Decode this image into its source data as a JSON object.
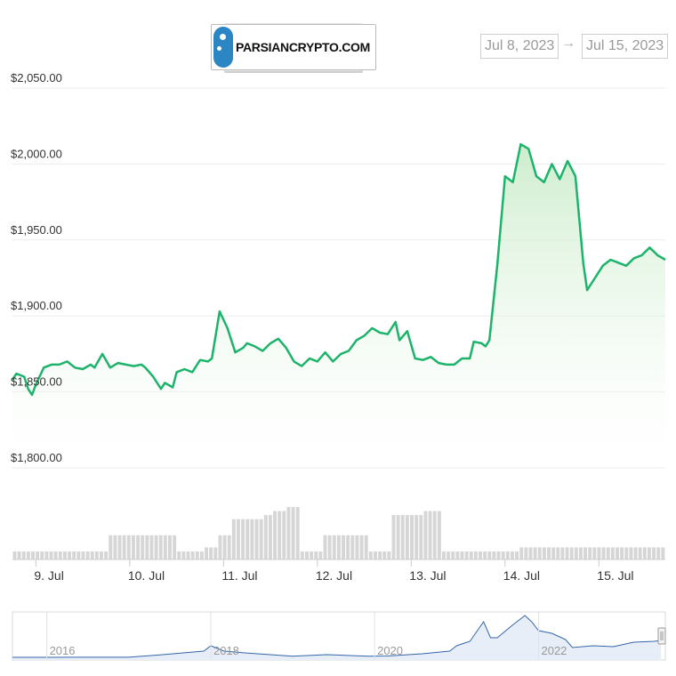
{
  "logo": {
    "text": "PARSIANCRYPTO.COM"
  },
  "range_selector": {
    "from": "Jul 8, 2023",
    "arrow": "→",
    "to": "Jul 15, 2023"
  },
  "colors": {
    "line": "#1db36b",
    "area_top": "#d9f2d9",
    "volume": "#d6d6d6",
    "navigator_line": "#3366aa",
    "grid": "#ebebeb"
  },
  "chart_data": [
    {
      "type": "area",
      "title": "",
      "xlabel": "",
      "ylabel": "",
      "x_ticks": [
        "9. Jul",
        "10. Jul",
        "11. Jul",
        "12. Jul",
        "13. Jul",
        "14. Jul",
        "15. Jul"
      ],
      "y_ticks": [
        "$1,800.00",
        "$1,850.00",
        "$1,900.00",
        "$1,950.00",
        "$2,000.00",
        "$2,050.00"
      ],
      "ylim": [
        1800,
        2050
      ],
      "xlim": [
        "2023-07-08T18:00",
        "2023-07-15T17:00"
      ],
      "grid": true,
      "series": [
        {
          "values_x": [
            "2023-07-08T18:00",
            "2023-07-08T19:00",
            "2023-07-08T21:00",
            "2023-07-08T22:00",
            "2023-07-08T23:00",
            "2023-07-09T00:00",
            "2023-07-09T02:00",
            "2023-07-09T04:00",
            "2023-07-09T06:00",
            "2023-07-09T08:00",
            "2023-07-09T10:00",
            "2023-07-09T12:00",
            "2023-07-09T14:00",
            "2023-07-09T15:00",
            "2023-07-09T17:00",
            "2023-07-09T19:00",
            "2023-07-09T21:00",
            "2023-07-09T23:00",
            "2023-07-10T01:00",
            "2023-07-10T03:00",
            "2023-07-10T04:00",
            "2023-07-10T06:00",
            "2023-07-10T08:00",
            "2023-07-10T09:00",
            "2023-07-10T11:00",
            "2023-07-10T12:00",
            "2023-07-10T14:00",
            "2023-07-10T16:00",
            "2023-07-10T18:00",
            "2023-07-10T20:00",
            "2023-07-10T21:00",
            "2023-07-10T23:00",
            "2023-07-11T01:00",
            "2023-07-11T03:00",
            "2023-07-11T05:00",
            "2023-07-11T06:00",
            "2023-07-11T08:00",
            "2023-07-11T10:00",
            "2023-07-11T12:00",
            "2023-07-11T14:00",
            "2023-07-11T16:00",
            "2023-07-11T18:00",
            "2023-07-11T20:00",
            "2023-07-11T22:00",
            "2023-07-12T00:00",
            "2023-07-12T02:00",
            "2023-07-12T04:00",
            "2023-07-12T06:00",
            "2023-07-12T08:00",
            "2023-07-12T10:00",
            "2023-07-12T12:00",
            "2023-07-12T14:00",
            "2023-07-12T16:00",
            "2023-07-12T18:00",
            "2023-07-12T20:00",
            "2023-07-12T21:00",
            "2023-07-12T23:00",
            "2023-07-13T01:00",
            "2023-07-13T03:00",
            "2023-07-13T05:00",
            "2023-07-13T07:00",
            "2023-07-13T09:00",
            "2023-07-13T11:00",
            "2023-07-13T13:00",
            "2023-07-13T15:00",
            "2023-07-13T16:00",
            "2023-07-13T18:00",
            "2023-07-13T19:00",
            "2023-07-13T20:00",
            "2023-07-13T22:00",
            "2023-07-14T00:00",
            "2023-07-14T02:00",
            "2023-07-14T04:00",
            "2023-07-14T06:00",
            "2023-07-14T08:00",
            "2023-07-14T10:00",
            "2023-07-14T12:00",
            "2023-07-14T14:00",
            "2023-07-14T16:00",
            "2023-07-14T18:00",
            "2023-07-14T20:00",
            "2023-07-14T21:00",
            "2023-07-14T23:00",
            "2023-07-15T01:00",
            "2023-07-15T03:00",
            "2023-07-15T05:00",
            "2023-07-15T07:00",
            "2023-07-15T09:00",
            "2023-07-15T11:00",
            "2023-07-15T13:00",
            "2023-07-15T15:00",
            "2023-07-15T17:00"
          ],
          "values": [
            1858,
            1862,
            1860,
            1852,
            1848,
            1855,
            1866,
            1868,
            1868,
            1870,
            1866,
            1865,
            1868,
            1866,
            1875,
            1866,
            1869,
            1868,
            1867,
            1868,
            1866,
            1860,
            1852,
            1856,
            1853,
            1863,
            1865,
            1863,
            1871,
            1870,
            1872,
            1903,
            1892,
            1876,
            1879,
            1882,
            1880,
            1877,
            1882,
            1885,
            1879,
            1870,
            1867,
            1872,
            1870,
            1876,
            1870,
            1875,
            1877,
            1884,
            1887,
            1892,
            1889,
            1888,
            1896,
            1884,
            1890,
            1872,
            1871,
            1873,
            1869,
            1868,
            1868,
            1872,
            1872,
            1883,
            1882,
            1880,
            1884,
            1933,
            1992,
            1988,
            2013,
            2010,
            1992,
            1988,
            2000,
            1990,
            2002,
            1992,
            1935,
            1917,
            1925,
            1933,
            1937,
            1935,
            1933,
            1938,
            1940,
            1945,
            1940,
            1937
          ]
        }
      ],
      "volume": {
        "values": [
          2,
          2,
          2,
          2,
          2,
          2,
          2,
          2,
          2,
          2,
          2,
          2,
          2,
          2,
          2,
          2,
          2,
          2,
          2,
          2,
          2,
          6,
          6,
          6,
          6,
          6,
          6,
          6,
          6,
          6,
          6,
          6,
          6,
          6,
          6,
          6,
          2,
          2,
          2,
          2,
          2,
          2,
          3,
          3,
          3,
          6,
          6,
          6,
          10,
          10,
          10,
          10,
          10,
          10,
          10,
          11,
          11,
          12,
          12,
          12,
          13,
          13,
          13,
          2,
          2,
          2,
          2,
          2,
          6,
          6,
          6,
          6,
          6,
          6,
          6,
          6,
          6,
          6,
          2,
          2,
          2,
          2,
          2,
          11,
          11,
          11,
          11,
          11,
          11,
          11,
          12,
          12,
          12,
          12,
          2,
          2,
          2,
          2,
          2,
          2,
          2,
          2,
          2,
          2,
          2,
          2,
          2,
          2,
          2,
          2,
          2,
          3,
          3,
          3,
          3,
          3,
          3,
          3,
          3,
          3,
          3,
          3,
          3,
          3,
          3,
          3,
          3,
          3,
          3,
          3,
          3,
          3,
          3,
          3,
          3,
          3,
          3,
          3,
          3,
          3,
          3,
          3,
          3
        ]
      }
    },
    {
      "type": "area",
      "title": "",
      "x_ticks": [
        "2016",
        "2018",
        "2020",
        "2022"
      ],
      "series": [
        {
          "values_x": [
            "2015-08",
            "2016-01",
            "2016-06",
            "2017-01",
            "2017-06",
            "2017-12",
            "2018-01",
            "2018-03",
            "2018-06",
            "2019-01",
            "2019-06",
            "2019-12",
            "2020-03",
            "2020-08",
            "2020-12",
            "2021-01",
            "2021-03",
            "2021-05",
            "2021-06",
            "2021-07",
            "2021-09",
            "2021-11",
            "2021-12",
            "2022-01",
            "2022-03",
            "2022-05",
            "2022-06",
            "2022-09",
            "2022-12",
            "2023-03",
            "2023-06",
            "2023-07"
          ],
          "values": [
            1,
            5,
            10,
            10,
            300,
            700,
            1300,
            700,
            500,
            130,
            300,
            130,
            150,
            400,
            700,
            1300,
            1800,
            4000,
            2200,
            2200,
            3500,
            4700,
            4000,
            3000,
            2700,
            2000,
            1100,
            1300,
            1200,
            1700,
            1800,
            1900
          ]
        }
      ]
    }
  ]
}
